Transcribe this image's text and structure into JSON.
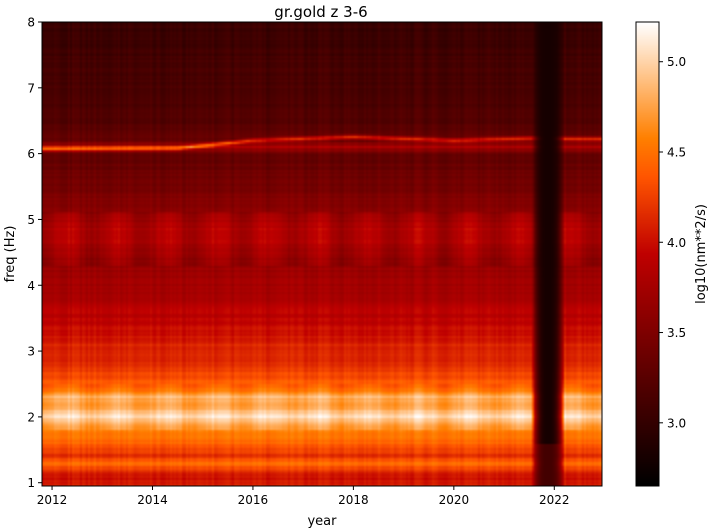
{
  "chart_data": {
    "type": "heatmap",
    "title": "gr.gold z 3-6",
    "xlabel": "year",
    "ylabel": "freq (Hz)",
    "colorbar_label": "log10(nm**2/s)",
    "colormap": "gist_heat",
    "xlim": [
      2011.8,
      2022.95
    ],
    "ylim": [
      0.95,
      8.0
    ],
    "x_ticks": [
      2012,
      2014,
      2016,
      2018,
      2020,
      2022
    ],
    "x_tick_labels": [
      "2012",
      "2014",
      "2016",
      "2018",
      "2020",
      "2022"
    ],
    "y_ticks": [
      1,
      2,
      3,
      4,
      5,
      6,
      7,
      8
    ],
    "y_tick_labels": [
      "1",
      "2",
      "3",
      "4",
      "5",
      "6",
      "7",
      "8"
    ],
    "colorbar_range": [
      2.65,
      5.22
    ],
    "colorbar_ticks": [
      3.0,
      3.5,
      4.0,
      4.5,
      5.0
    ],
    "colorbar_tick_labels": [
      "3.0",
      "3.5",
      "4.0",
      "4.5",
      "5.0"
    ],
    "frequency_profile": {
      "freq": [
        1.0,
        1.1,
        1.2,
        1.3,
        1.4,
        1.5,
        1.6,
        1.7,
        1.8,
        1.9,
        2.0,
        2.1,
        2.2,
        2.3,
        2.4,
        2.5,
        2.6,
        2.7,
        2.8,
        2.9,
        3.0,
        3.2,
        3.4,
        3.6,
        3.8,
        4.0,
        4.2,
        4.4,
        4.6,
        4.8,
        5.0,
        5.2,
        5.5,
        5.8,
        6.0,
        6.1,
        6.2,
        6.5,
        7.0,
        7.5,
        8.0
      ],
      "log10_power": [
        4.05,
        4.0,
        4.25,
        4.5,
        4.15,
        4.3,
        4.45,
        4.5,
        4.65,
        4.8,
        5.1,
        4.85,
        4.75,
        4.85,
        4.55,
        4.4,
        4.3,
        4.25,
        4.15,
        4.1,
        4.15,
        4.05,
        3.95,
        3.9,
        3.8,
        3.75,
        3.7,
        3.65,
        3.8,
        3.85,
        3.75,
        3.55,
        3.45,
        3.35,
        3.35,
        3.8,
        3.35,
        3.2,
        3.15,
        3.1,
        3.05
      ]
    },
    "bright_line": {
      "x": [
        2011.8,
        2014.5,
        2016.0,
        2018.0,
        2020.0,
        2021.5,
        2022.5
      ],
      "freq": [
        6.07,
        6.08,
        6.2,
        6.25,
        6.2,
        6.23,
        6.22
      ]
    },
    "low_power_interval": {
      "x": [
        2021.6,
        2022.15
      ],
      "log10_power": 2.8
    },
    "seasonal_peak_years": [
      2012.3,
      2013.3,
      2014.3,
      2015.3,
      2016.3,
      2017.3,
      2018.3,
      2019.3,
      2020.3,
      2021.3,
      2022.3
    ]
  }
}
